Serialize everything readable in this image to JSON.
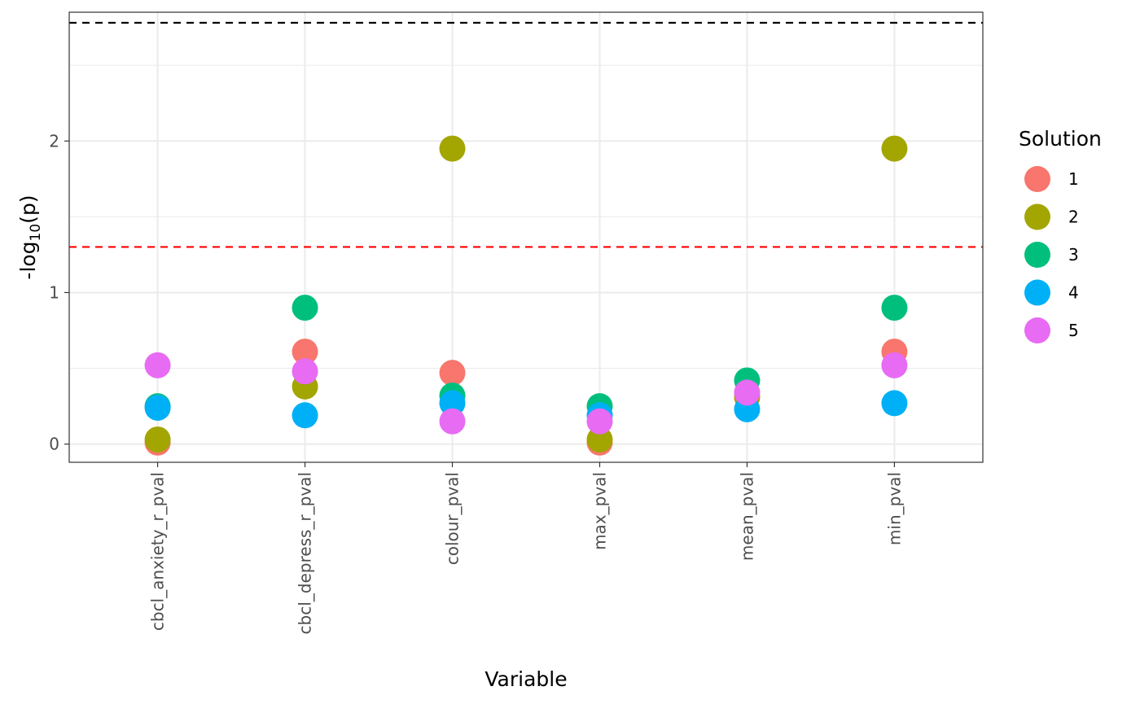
{
  "chart_data": {
    "type": "scatter",
    "xlabel": "Variable",
    "ylabel_main": "-log",
    "ylabel_sub": "10",
    "ylabel_end": "(p)",
    "categories": [
      "cbcl_anxiety_r_pval",
      "cbcl_depress_r_pval",
      "colour_pval",
      "max_pval",
      "mean_pval",
      "min_pval"
    ],
    "y_ticks": [
      "0",
      "1",
      "2"
    ],
    "ylim": [
      -0.12,
      2.85
    ],
    "grid": true,
    "reference_lines": [
      {
        "y": 2.78,
        "color": "#000000",
        "style": "dashed"
      },
      {
        "y": 1.301,
        "color": "#ff0000",
        "style": "dashed"
      }
    ],
    "legend": {
      "title": "Solution",
      "position": "right"
    },
    "series": [
      {
        "name": "1",
        "color": "#F8766D",
        "values": [
          0.01,
          0.61,
          0.47,
          0.01,
          0.31,
          0.61
        ]
      },
      {
        "name": "2",
        "color": "#A3A500",
        "values": [
          0.03,
          0.38,
          1.95,
          0.03,
          0.31,
          1.95
        ]
      },
      {
        "name": "3",
        "color": "#00BF7D",
        "values": [
          0.25,
          0.9,
          0.32,
          0.25,
          0.42,
          0.9
        ]
      },
      {
        "name": "4",
        "color": "#00B0F6",
        "values": [
          0.24,
          0.19,
          0.27,
          0.19,
          0.23,
          0.27
        ]
      },
      {
        "name": "5",
        "color": "#E76BF3",
        "values": [
          0.52,
          0.48,
          0.15,
          0.15,
          0.34,
          0.52
        ]
      }
    ]
  }
}
